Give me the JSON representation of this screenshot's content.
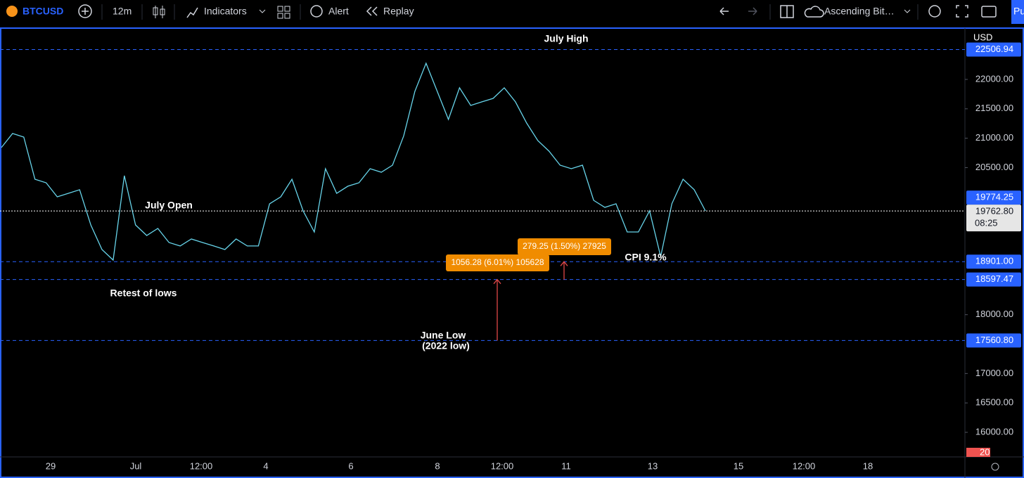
{
  "toolbar": {
    "symbol": "BTCUSD",
    "interval": "12m",
    "indicators": "Indicators",
    "alert": "Alert",
    "replay": "Replay",
    "layout": "Ascending Bit…",
    "publish": "Pu"
  },
  "chart_data": {
    "type": "line",
    "color": "#67d4ea",
    "values": [
      20841,
      21080,
      21020,
      20303,
      20243,
      20004,
      20064,
      20124,
      19526,
      19108,
      18928,
      20363,
      19526,
      19347,
      19466,
      19227,
      19168,
      19287,
      19227,
      19168,
      19108,
      19287,
      19168,
      19168,
      19885,
      20004,
      20303,
      19765,
      19406,
      20482,
      20064,
      20184,
      20243,
      20482,
      20422,
      20542,
      21040,
      21797,
      22275,
      21797,
      21319,
      21857,
      21558,
      21618,
      21677,
      21857,
      21618,
      21259,
      20960,
      20781,
      20542,
      20482,
      20542,
      19944,
      19825,
      19885,
      19406,
      19406,
      19765,
      18988,
      19885,
      20303,
      20124,
      19765
    ],
    "ylim": [
      15582,
      22872
    ],
    "yticks": [
      {
        "value": 16000,
        "label": "16000.00"
      },
      {
        "value": 16500,
        "label": "16500.00"
      },
      {
        "value": 17000,
        "label": "17000.00"
      },
      {
        "value": 18000,
        "label": "18000.00"
      },
      {
        "value": 20500,
        "label": "20500.00"
      },
      {
        "value": 21000,
        "label": "21000.00"
      },
      {
        "value": 21500,
        "label": "21500.00"
      },
      {
        "value": 22000,
        "label": "22000.00"
      }
    ],
    "x_labels": [
      "29",
      "Jul",
      "12:00",
      "4",
      "6",
      "8",
      "12:00",
      "11",
      "13",
      "15",
      "12:00",
      "18"
    ],
    "levels": [
      {
        "value": 22506.94,
        "label": "22506.94"
      },
      {
        "value": 18901,
        "label": "18901.00"
      },
      {
        "value": 18597.47,
        "label": "18597.47"
      },
      {
        "value": 17560.8,
        "label": "17560.80"
      }
    ],
    "last_price": {
      "value": 19762.8,
      "label": "19762.80"
    },
    "countdown": "08:25",
    "bar_high": 19774.25,
    "currency": "USD",
    "volume_value": 20,
    "annotations": {
      "july_high": "July High",
      "july_open": "July Open",
      "retest": "Retest of lows",
      "june_low": "June Low",
      "june_low_note": "(2022 low)",
      "cpi": "CPI 9.1%"
    },
    "measures": [
      "1056.28 (6.01%) 105628",
      "279.25 (1.50%) 27925"
    ]
  }
}
